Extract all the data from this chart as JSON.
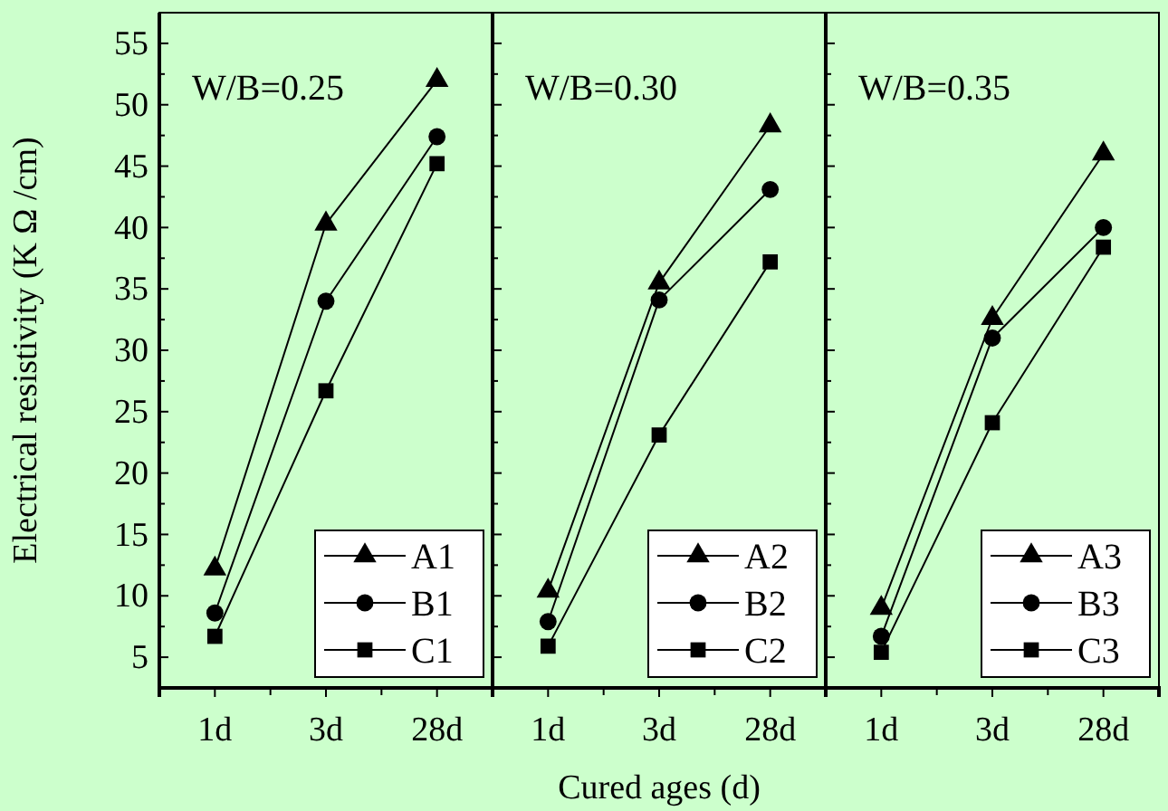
{
  "chart_data": [
    {
      "type": "line",
      "title": "W/B=0.25",
      "ylabel": "Electrical resistivity (K Ω /cm)",
      "categories": [
        "1d",
        "3d",
        "28d"
      ],
      "ylim": [
        2.5,
        57.5
      ],
      "yticks": [
        5,
        {
          "value": 7.5,
          "label": null
        },
        10,
        {
          "value": 12.5,
          "label": null
        },
        15,
        {
          "value": 17.5,
          "label": null
        },
        20,
        {
          "value": 22.5,
          "label": null
        },
        25,
        {
          "value": 27.5,
          "label": null
        },
        30,
        {
          "value": 32.5,
          "label": null
        },
        35,
        {
          "value": 37.5,
          "label": null
        },
        40,
        {
          "value": 42.5,
          "label": null
        },
        45,
        {
          "value": 47.5,
          "label": null
        },
        50,
        {
          "value": 52.5,
          "label": null
        },
        55
      ],
      "legend": "bottom right",
      "series": [
        {
          "name": "A1",
          "color": "#000000",
          "marker": "triangle",
          "values": [
            12.2,
            40.3,
            52
          ]
        },
        {
          "name": "B1",
          "color": "#000000",
          "marker": "circle",
          "values": [
            8.6,
            34,
            47.4
          ]
        },
        {
          "name": "C1",
          "color": "#000000",
          "marker": "square",
          "values": [
            6.7,
            26.7,
            45.2
          ]
        }
      ]
    },
    {
      "type": "line",
      "title": "W/B=0.30",
      "xlabel": "Cured ages (d)",
      "categories": [
        "1d",
        "3d",
        "28d"
      ],
      "ylim": [
        2.5,
        57.5
      ],
      "yticks": [
        5,
        {
          "value": 7.5,
          "label": null
        },
        10,
        {
          "value": 12.5,
          "label": null
        },
        15,
        {
          "value": 17.5,
          "label": null
        },
        20,
        {
          "value": 22.5,
          "label": null
        },
        25,
        {
          "value": 27.5,
          "label": null
        },
        30,
        {
          "value": 32.5,
          "label": null
        },
        35,
        {
          "value": 37.5,
          "label": null
        },
        40,
        {
          "value": 42.5,
          "label": null
        },
        45,
        {
          "value": 47.5,
          "label": null
        },
        50,
        {
          "value": 52.5,
          "label": null
        },
        55
      ],
      "tick_labels": "x",
      "legend": "bottom right",
      "series": [
        {
          "name": "A2",
          "color": "#000000",
          "marker": "triangle",
          "values": [
            10.4,
            35.5,
            48.3
          ]
        },
        {
          "name": "B2",
          "color": "#000000",
          "marker": "circle",
          "values": [
            7.9,
            34.1,
            43.1
          ]
        },
        {
          "name": "C2",
          "color": "#000000",
          "marker": "square",
          "values": [
            5.9,
            23.1,
            37.2
          ]
        }
      ]
    },
    {
      "type": "line",
      "title": "W/B=0.35",
      "categories": [
        "1d",
        "3d",
        "28d"
      ],
      "ylim": [
        2.5,
        57.5
      ],
      "yticks": [
        5,
        {
          "value": 7.5,
          "label": null
        },
        10,
        {
          "value": 12.5,
          "label": null
        },
        15,
        {
          "value": 17.5,
          "label": null
        },
        20,
        {
          "value": 22.5,
          "label": null
        },
        25,
        {
          "value": 27.5,
          "label": null
        },
        30,
        {
          "value": 32.5,
          "label": null
        },
        35,
        {
          "value": 37.5,
          "label": null
        },
        40,
        {
          "value": 42.5,
          "label": null
        },
        45,
        {
          "value": 47.5,
          "label": null
        },
        50,
        {
          "value": 52.5,
          "label": null
        },
        55
      ],
      "tick_labels": "x",
      "legend": "bottom right",
      "series": [
        {
          "name": "A3",
          "color": "#000000",
          "marker": "triangle",
          "values": [
            9,
            32.6,
            46
          ]
        },
        {
          "name": "B3",
          "color": "#000000",
          "marker": "circle",
          "values": [
            6.7,
            31,
            40
          ]
        },
        {
          "name": "C3",
          "color": "#000000",
          "marker": "square",
          "values": [
            5.4,
            24.1,
            38.4
          ]
        }
      ]
    }
  ]
}
